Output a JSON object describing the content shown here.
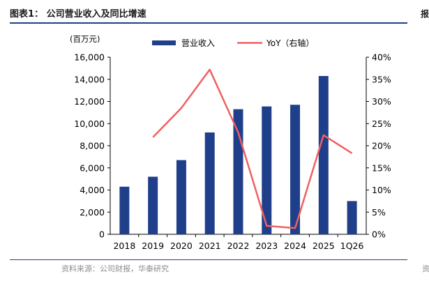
{
  "header": {
    "title": "图表1：  公司营业收入及同比增速",
    "edge_mark": "报"
  },
  "footer": {
    "source": "资料来源：公司财报，华泰研究",
    "edge_mark": "资"
  },
  "chart_data": {
    "type": "bar",
    "categories": [
      "2018",
      "2019",
      "2020",
      "2021",
      "2022",
      "2023",
      "2024",
      "2025",
      "1Q26"
    ],
    "unit_label": "(百万元)",
    "series": [
      {
        "name": "营业收入",
        "type": "bar",
        "axis": "left",
        "color": "#1f3f8a",
        "values": [
          4300,
          5200,
          6700,
          9200,
          11300,
          11550,
          11700,
          14300,
          3000
        ]
      },
      {
        "name": "YoY（右轴）",
        "type": "line",
        "axis": "right",
        "color": "#f06060",
        "values": [
          null,
          21.9,
          28.5,
          37.2,
          23.0,
          1.9,
          1.4,
          22.4,
          18.3
        ]
      }
    ],
    "y_left": {
      "min": 0,
      "max": 16000,
      "ticks": [
        "0",
        "2,000",
        "4,000",
        "6,000",
        "8,000",
        "10,000",
        "12,000",
        "14,000",
        "16,000"
      ]
    },
    "y_right": {
      "min": 0,
      "max": 40,
      "ticks": [
        "0%",
        "5%",
        "10%",
        "15%",
        "20%",
        "25%",
        "30%",
        "35%",
        "40%"
      ]
    },
    "grid": false,
    "legend_position": "top"
  }
}
